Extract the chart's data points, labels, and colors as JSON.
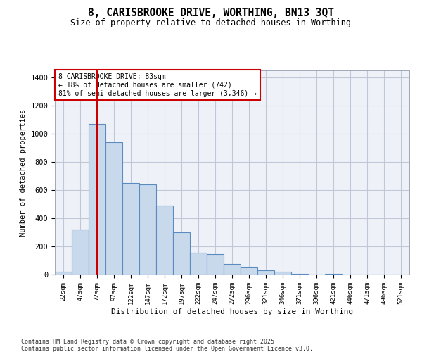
{
  "title1": "8, CARISBROOKE DRIVE, WORTHING, BN13 3QT",
  "title2": "Size of property relative to detached houses in Worthing",
  "xlabel": "Distribution of detached houses by size in Worthing",
  "ylabel": "Number of detached properties",
  "categories": [
    "22sqm",
    "47sqm",
    "72sqm",
    "97sqm",
    "122sqm",
    "147sqm",
    "172sqm",
    "197sqm",
    "222sqm",
    "247sqm",
    "272sqm",
    "296sqm",
    "321sqm",
    "346sqm",
    "371sqm",
    "396sqm",
    "421sqm",
    "446sqm",
    "471sqm",
    "496sqm",
    "521sqm"
  ],
  "values": [
    20,
    320,
    1070,
    940,
    650,
    640,
    490,
    300,
    155,
    145,
    75,
    55,
    30,
    20,
    5,
    0,
    5,
    0,
    0,
    0,
    0
  ],
  "bar_color": "#c9d9ec",
  "bar_edge_color": "#5b8bbf",
  "vline_x": 2,
  "vline_color": "#cc0000",
  "annotation_text": "8 CARISBROOKE DRIVE: 83sqm\n← 18% of detached houses are smaller (742)\n81% of semi-detached houses are larger (3,346) →",
  "annotation_box_edgecolor": "#cc0000",
  "ylim": [
    0,
    1450
  ],
  "yticks": [
    0,
    200,
    400,
    600,
    800,
    1000,
    1200,
    1400
  ],
  "grid_color": "#c0c8d8",
  "bg_color": "#eef2f8",
  "footer1": "Contains HM Land Registry data © Crown copyright and database right 2025.",
  "footer2": "Contains public sector information licensed under the Open Government Licence v3.0."
}
